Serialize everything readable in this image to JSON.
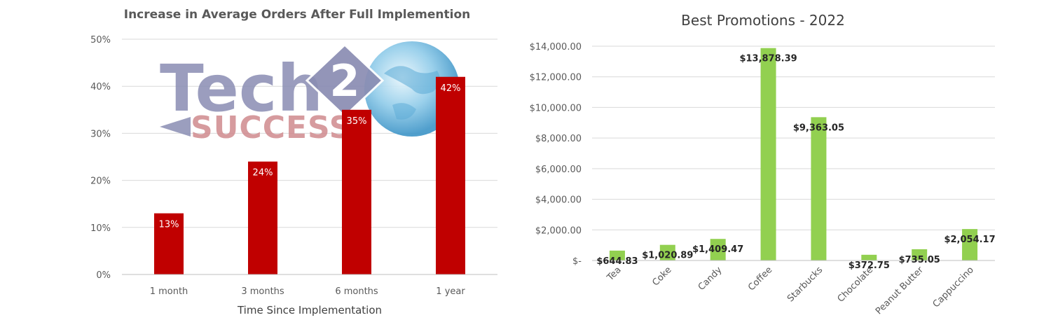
{
  "colors": {
    "left_bar": "#c00000",
    "right_bar": "#92d050",
    "grid": "#d9d9d9"
  },
  "logo": {
    "text_tech": "Tech",
    "text_two": "2",
    "text_success": "SUCCESS"
  },
  "chart_data": [
    {
      "type": "bar",
      "title": "Increase in Average Orders After Full Implemention",
      "xlabel": "Time Since Implementation",
      "ylabel": "",
      "categories": [
        "1 month",
        "3 months",
        "6 months",
        "1 year"
      ],
      "values": [
        13,
        24,
        35,
        42
      ],
      "data_labels": [
        "13%",
        "24%",
        "35%",
        "42%"
      ],
      "ylim": [
        0,
        50
      ],
      "yticks": [
        0,
        10,
        20,
        30,
        40,
        50
      ],
      "ytick_labels": [
        "0%",
        "10%",
        "20%",
        "30%",
        "40%",
        "50%"
      ],
      "grid": true,
      "legend": "none"
    },
    {
      "type": "bar",
      "title": "Best Promotions - 2022",
      "xlabel": "",
      "ylabel": "",
      "categories": [
        "Tea",
        "Coke",
        "Candy",
        "Coffee",
        "Starbucks",
        "Chocolate",
        "Peanut Butter",
        "Cappuccino"
      ],
      "values": [
        644.83,
        1020.89,
        1409.47,
        13878.39,
        9363.05,
        372.75,
        735.05,
        2054.17
      ],
      "data_labels": [
        "$644.83",
        "$1,020.89",
        "$1,409.47",
        "$13,878.39",
        "$9,363.05",
        "$372.75",
        "$735.05",
        "$2,054.17"
      ],
      "ylim": [
        0,
        14000
      ],
      "yticks": [
        0,
        2000,
        4000,
        6000,
        8000,
        10000,
        12000,
        14000
      ],
      "ytick_labels": [
        "$-",
        "$2,000.00",
        "$4,000.00",
        "$6,000.00",
        "$8,000.00",
        "$10,000.00",
        "$12,000.00",
        "$14,000.00"
      ],
      "grid": true,
      "legend": "none"
    }
  ]
}
